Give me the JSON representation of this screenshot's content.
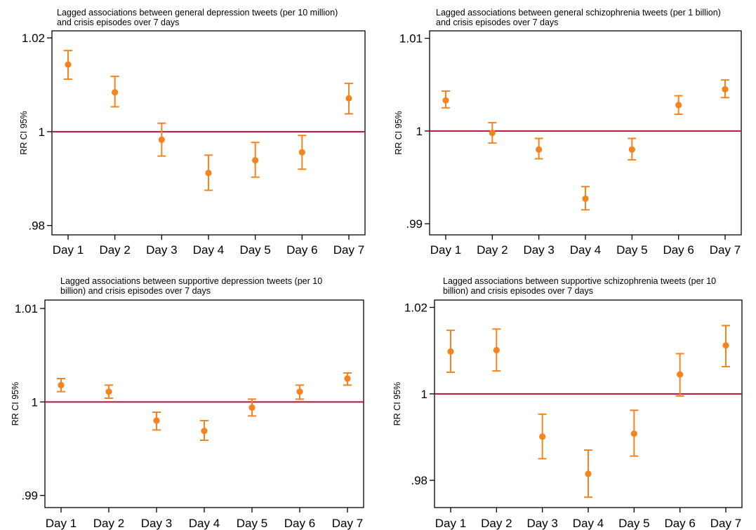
{
  "chart_data": [
    {
      "type": "scatter",
      "title_lines": [
        "Lagged  associations between general depression tweets (per 10 million)",
        "and crisis episodes over 7 days"
      ],
      "ylabel": "RR CI 95%",
      "categories": [
        "Day 1",
        "Day 2",
        "Day 3",
        "Day 4",
        "Day 5",
        "Day 6",
        "Day 7"
      ],
      "yticks": [
        {
          "v": 0.98,
          "label": ".98"
        },
        {
          "v": 1.0,
          "label": "1"
        },
        {
          "v": 1.02,
          "label": "1.02"
        }
      ],
      "ylim": [
        0.978,
        1.0215
      ],
      "reference_line": 1.0,
      "series": [
        {
          "estimate": [
            1.0143,
            1.0084,
            0.9983,
            0.9912,
            0.9939,
            0.9956,
            1.0071
          ],
          "ci_lower": [
            1.0112,
            1.0053,
            0.9948,
            0.9875,
            0.9903,
            0.992,
            1.0038
          ],
          "ci_upper": [
            1.0173,
            1.0118,
            1.0018,
            0.995,
            0.9977,
            0.9992,
            1.0103
          ]
        }
      ]
    },
    {
      "type": "scatter",
      "title_lines": [
        "Lagged associations  between general schizophrenia tweets (per 1 billion)",
        "and crisis episodes over 7 days"
      ],
      "ylabel": "RR CI 95%",
      "categories": [
        "Day 1",
        "Day 2",
        "Day 3",
        "Day 4",
        "Day 5",
        "Day 6",
        "Day 7"
      ],
      "yticks": [
        {
          "v": 0.99,
          "label": ".99"
        },
        {
          "v": 1.0,
          "label": "1"
        },
        {
          "v": 1.01,
          "label": "1.01"
        }
      ],
      "ylim": [
        0.9888,
        1.0108
      ],
      "reference_line": 1.0,
      "series": [
        {
          "estimate": [
            1.0033,
            0.9998,
            0.998,
            0.9927,
            0.998,
            1.0028,
            1.0045
          ],
          "ci_lower": [
            1.0025,
            0.9987,
            0.997,
            0.9915,
            0.9969,
            1.0018,
            1.0036
          ],
          "ci_upper": [
            1.0043,
            1.0009,
            0.9992,
            0.994,
            0.9992,
            1.0038,
            1.0055
          ]
        }
      ]
    },
    {
      "type": "scatter",
      "title_lines": [
        "Lagged  associations between supportive depression tweets (per 10",
        "billion) and crisis episodes over 7 days"
      ],
      "ylabel": "RR CI 95%",
      "categories": [
        "Day 1",
        "Day 2",
        "Day 3",
        "Day 4",
        "Day 5",
        "Day 6",
        "Day 7"
      ],
      "yticks": [
        {
          "v": 0.99,
          "label": ".99"
        },
        {
          "v": 1.0,
          "label": "1"
        },
        {
          "v": 1.01,
          "label": "1.01"
        }
      ],
      "ylim": [
        0.9887,
        1.0109
      ],
      "reference_line": 1.0,
      "series": [
        {
          "estimate": [
            1.0018,
            1.0011,
            0.998,
            0.9969,
            0.9994,
            1.0011,
            1.0025
          ],
          "ci_lower": [
            1.0011,
            1.0004,
            0.997,
            0.9959,
            0.9985,
            1.0003,
            1.0018
          ],
          "ci_upper": [
            1.0025,
            1.0018,
            0.9989,
            0.998,
            1.0003,
            1.0018,
            1.0031
          ]
        }
      ]
    },
    {
      "type": "scatter",
      "title_lines": [
        "Lagged  associations between supportive schizophrenia tweets (per 10",
        "billion) and crisis episodes over 7 days"
      ],
      "ylabel": "RR CI 95%",
      "categories": [
        "Day 1",
        "Day 2",
        "Day 3",
        "Day 4",
        "Day 5",
        "Day 6",
        "Day 7"
      ],
      "yticks": [
        {
          "v": 0.98,
          "label": ".98"
        },
        {
          "v": 1.0,
          "label": "1"
        },
        {
          "v": 1.02,
          "label": "1.02"
        }
      ],
      "ylim": [
        0.9737,
        1.0217
      ],
      "reference_line": 1.0,
      "series": [
        {
          "estimate": [
            1.0098,
            1.0101,
            0.9901,
            0.9815,
            0.9908,
            1.0045,
            1.0112
          ],
          "ci_lower": [
            1.005,
            1.0053,
            0.985,
            0.9761,
            0.9856,
            0.9995,
            1.0063
          ],
          "ci_upper": [
            1.0147,
            1.015,
            0.9953,
            0.987,
            0.9962,
            1.0093,
            1.0158
          ]
        }
      ]
    }
  ],
  "colors": {
    "marker": "#f5841f",
    "reference_line": "#b5123a",
    "frame": "#000000"
  }
}
